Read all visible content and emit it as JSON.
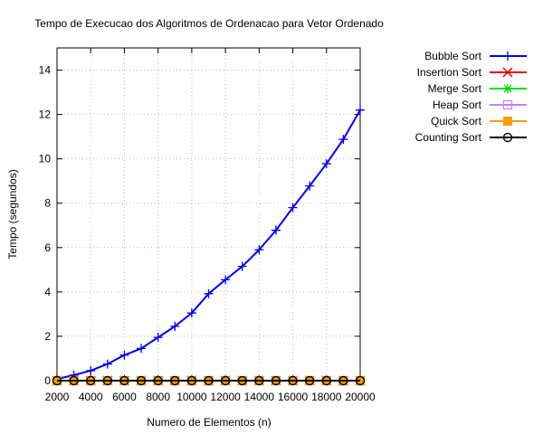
{
  "chart_data": {
    "type": "line",
    "title": "Tempo de Execucao dos Algoritmos de Ordenacao para Vetor Ordenado",
    "xlabel": "Numero de Elementos (n)",
    "ylabel": "Tempo (segundos)",
    "xlim": [
      2000,
      20000
    ],
    "ylim": [
      0,
      15
    ],
    "xticks": [
      2000,
      4000,
      6000,
      8000,
      10000,
      12000,
      14000,
      16000,
      18000,
      20000
    ],
    "yticks": [
      0,
      2,
      4,
      6,
      8,
      10,
      12,
      14
    ],
    "grid": true,
    "legend_position": "outside-right",
    "x": [
      2000,
      3000,
      4000,
      5000,
      6000,
      7000,
      8000,
      9000,
      10000,
      11000,
      12000,
      13000,
      14000,
      15000,
      16000,
      17000,
      18000,
      19000,
      20000
    ],
    "series": [
      {
        "name": "Bubble Sort",
        "color": "#0000ee",
        "marker": "plus",
        "values": [
          0.07,
          0.25,
          0.45,
          0.75,
          1.15,
          1.45,
          1.95,
          2.45,
          3.05,
          3.92,
          4.55,
          5.15,
          5.9,
          6.78,
          7.8,
          8.78,
          9.78,
          10.88,
          12.2
        ]
      },
      {
        "name": "Insertion Sort",
        "color": "#ee0000",
        "marker": "cross",
        "values": [
          0,
          0,
          0,
          0,
          0,
          0,
          0,
          0,
          0,
          0,
          0,
          0,
          0,
          0,
          0,
          0,
          0,
          0,
          0
        ]
      },
      {
        "name": "Merge Sort",
        "color": "#00dd00",
        "marker": "star",
        "values": [
          0,
          0,
          0,
          0,
          0,
          0,
          0,
          0,
          0,
          0,
          0,
          0,
          0,
          0,
          0,
          0,
          0,
          0,
          0
        ]
      },
      {
        "name": "Heap Sort",
        "color": "#c080ff",
        "marker": "open-square",
        "values": [
          0,
          0,
          0,
          0,
          0,
          0,
          0,
          0,
          0,
          0,
          0,
          0,
          0,
          0,
          0,
          0,
          0,
          0,
          0
        ]
      },
      {
        "name": "Quick Sort",
        "color": "#f5a000",
        "marker": "filled-square",
        "values": [
          0,
          0,
          0,
          0,
          0,
          0,
          0,
          0,
          0,
          0,
          0,
          0,
          0,
          0,
          0,
          0,
          0,
          0,
          0
        ]
      },
      {
        "name": "Counting Sort",
        "color": "#000000",
        "marker": "open-circle",
        "values": [
          0,
          0,
          0,
          0,
          0,
          0,
          0,
          0,
          0,
          0,
          0,
          0,
          0,
          0,
          0,
          0,
          0,
          0,
          0
        ]
      }
    ]
  }
}
